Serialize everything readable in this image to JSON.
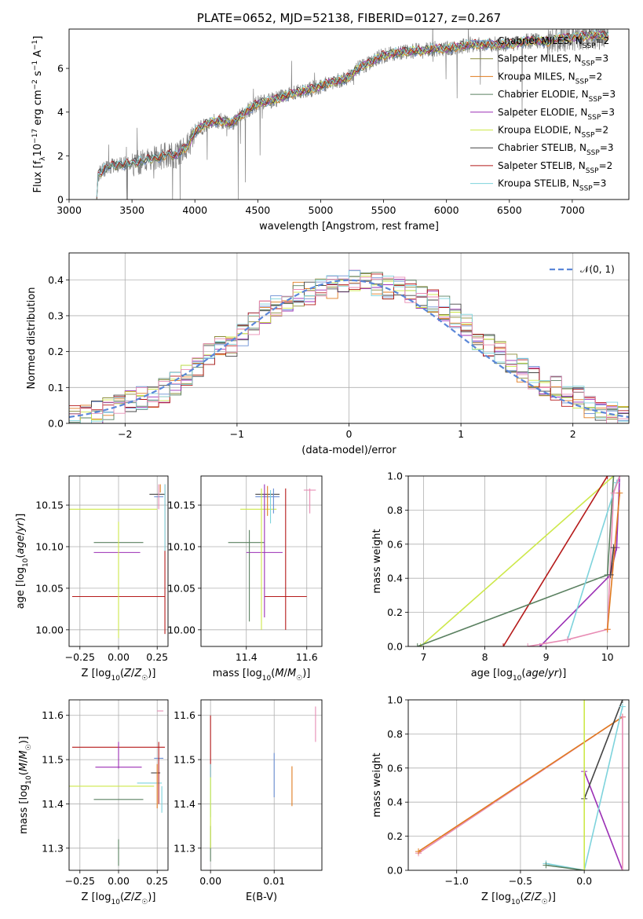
{
  "colors": {
    "Chabrier MILES": "#6b8fd4",
    "Salpeter MILES": "#8c8c3a",
    "Kroupa MILES": "#e07b1f",
    "Chabrier ELODIE": "#5a8060",
    "Salpeter ELODIE": "#9b2fb5",
    "Kroupa ELODIE": "#cde84a",
    "Chabrier STELIB": "#444444",
    "Salpeter STELIB": "#b51a1a",
    "Kroupa STELIB": "#7ed3dc",
    "Kroupa STELIB alt": "#e88cb4",
    "data": "#808080"
  },
  "chart_data": [
    {
      "id": "spectrum",
      "type": "line",
      "title": "PLATE=0652, MJD=52138, FIBERID=0127, z=0.267",
      "xlabel": "wavelength [Angstrom, rest frame]",
      "ylabel": "Flux [f_λ 10^-17 erg cm^-2 s^-1 A^-1]",
      "xlim": [
        3000,
        7450
      ],
      "ylim": [
        0,
        7.8
      ],
      "xticks": [
        "3000",
        "3500",
        "4000",
        "4500",
        "5000",
        "5500",
        "6000",
        "6500",
        "7000"
      ],
      "yticks": [
        "0",
        "2",
        "4",
        "6"
      ],
      "legend_position": "top-right",
      "legend": [
        {
          "label": "Chabrier MILES, N",
          "sub": "SSP",
          "suffix": "=2",
          "color": "#6b8fd4"
        },
        {
          "label": "Salpeter MILES, N",
          "sub": "SSP",
          "suffix": "=3",
          "color": "#8c8c3a"
        },
        {
          "label": "Kroupa MILES, N",
          "sub": "SSP",
          "suffix": "=2",
          "color": "#e07b1f"
        },
        {
          "label": "Chabrier ELODIE, N",
          "sub": "SSP",
          "suffix": "=3",
          "color": "#5a8060"
        },
        {
          "label": "Salpeter ELODIE, N",
          "sub": "SSP",
          "suffix": "=3",
          "color": "#9b2fb5"
        },
        {
          "label": "Kroupa ELODIE, N",
          "sub": "SSP",
          "suffix": "=2",
          "color": "#cde84a"
        },
        {
          "label": "Chabrier STELIB, N",
          "sub": "SSP",
          "suffix": "=3",
          "color": "#444444"
        },
        {
          "label": "Salpeter STELIB, N",
          "sub": "SSP",
          "suffix": "=2",
          "color": "#b51a1a"
        },
        {
          "label": "Kroupa STELIB, N",
          "sub": "SSP",
          "suffix": "=3",
          "color": "#7ed3dc"
        }
      ],
      "model_points": [
        [
          3220,
          0.0
        ],
        [
          3225,
          1.1
        ],
        [
          3300,
          1.5
        ],
        [
          3400,
          1.6
        ],
        [
          3500,
          1.65
        ],
        [
          3600,
          1.8
        ],
        [
          3700,
          1.9
        ],
        [
          3800,
          2.1
        ],
        [
          3850,
          2.0
        ],
        [
          3950,
          2.5
        ],
        [
          4000,
          3.1
        ],
        [
          4100,
          3.5
        ],
        [
          4200,
          3.6
        ],
        [
          4300,
          3.5
        ],
        [
          4400,
          4.0
        ],
        [
          4500,
          4.4
        ],
        [
          4600,
          4.5
        ],
        [
          4700,
          4.7
        ],
        [
          4800,
          4.9
        ],
        [
          4900,
          5.0
        ],
        [
          5000,
          5.2
        ],
        [
          5100,
          5.4
        ],
        [
          5200,
          5.5
        ],
        [
          5300,
          6.0
        ],
        [
          5400,
          6.3
        ],
        [
          5500,
          6.6
        ],
        [
          5600,
          6.7
        ],
        [
          5700,
          6.8
        ],
        [
          5800,
          6.8
        ],
        [
          5900,
          6.9
        ],
        [
          6000,
          6.9
        ],
        [
          6100,
          7.0
        ],
        [
          6200,
          7.1
        ],
        [
          6300,
          7.1
        ],
        [
          6400,
          7.1
        ],
        [
          6500,
          7.1
        ],
        [
          6600,
          7.2
        ],
        [
          6700,
          7.3
        ],
        [
          6800,
          7.2
        ],
        [
          6900,
          7.4
        ],
        [
          7000,
          7.4
        ],
        [
          7100,
          7.5
        ],
        [
          7200,
          7.5
        ],
        [
          7280,
          7.5
        ]
      ]
    },
    {
      "id": "residuals",
      "type": "histogram",
      "xlabel": "(data-model)/error",
      "ylabel": "Normed distribution",
      "xlim": [
        -2.5,
        2.5
      ],
      "ylim": [
        0,
        0.475
      ],
      "xticks": [
        "−2",
        "−1",
        "0",
        "1",
        "2"
      ],
      "yticks": [
        "0.0",
        "0.1",
        "0.2",
        "0.3",
        "0.4"
      ],
      "legend_position": "top-right",
      "legend": [
        "𝒩(0, 1)"
      ],
      "bin_edges_start": -2.5,
      "bin_width": 0.1,
      "base_heights": [
        0.015,
        0.02,
        0.03,
        0.04,
        0.05,
        0.06,
        0.07,
        0.07,
        0.09,
        0.11,
        0.13,
        0.15,
        0.19,
        0.21,
        0.22,
        0.25,
        0.28,
        0.31,
        0.33,
        0.34,
        0.36,
        0.36,
        0.37,
        0.38,
        0.39,
        0.4,
        0.39,
        0.39,
        0.38,
        0.38,
        0.37,
        0.35,
        0.34,
        0.32,
        0.3,
        0.28,
        0.24,
        0.22,
        0.2,
        0.17,
        0.15,
        0.13,
        0.11,
        0.1,
        0.08,
        0.07,
        0.05,
        0.04,
        0.03,
        0.02
      ]
    },
    {
      "id": "age_vs_Z",
      "type": "errorbar",
      "xlabel": "Z [log10(Z/Z☉)]",
      "ylabel": "age  [log10(age/yr)]",
      "xlim": [
        -0.32,
        0.32
      ],
      "ylim": [
        9.98,
        10.185
      ],
      "xticks": [
        "−0.25",
        "0.00",
        "0.25"
      ],
      "yticks": [
        "10.00",
        "10.05",
        "10.10",
        "10.15"
      ],
      "points": [
        {
          "x": 0.0,
          "y": 10.105,
          "xerr": 0.16,
          "yerr": 0.0,
          "color": "#5a8060"
        },
        {
          "x": -0.01,
          "y": 10.093,
          "xerr": 0.15,
          "yerr": 0.0,
          "color": "#9b2fb5"
        },
        {
          "x": -0.05,
          "y": 10.145,
          "xerr": 0.3,
          "yerr": 0.0,
          "color": "#cde84a"
        },
        {
          "x": 0.0,
          "y": 10.04,
          "xerr": 0.3,
          "yerr": 0.0,
          "color": "#b51a1a"
        },
        {
          "x": 0.25,
          "y": 10.163,
          "xerr": 0.05,
          "yerr": 0.0,
          "color": "#444444"
        },
        {
          "x": 0.26,
          "y": 10.16,
          "xerr": 0.03,
          "yerr": 0.0,
          "color": "#6b8fd4"
        },
        {
          "x": 0.3,
          "y": 10.085,
          "xerr": 0.0,
          "yerr": 0.09,
          "color": "#b51a1a"
        },
        {
          "x": 0.0,
          "y": 10.06,
          "xerr": 0.0,
          "yerr": 0.07,
          "color": "#cde84a"
        },
        {
          "x": 0.3,
          "y": 10.135,
          "xerr": 0.0,
          "yerr": 0.04,
          "color": "#7ed3dc"
        },
        {
          "x": 0.26,
          "y": 10.16,
          "xerr": 0.0,
          "yerr": 0.015,
          "color": "#e88cb4"
        },
        {
          "x": 0.27,
          "y": 10.17,
          "xerr": 0.0,
          "yerr": 0.005,
          "color": "#e07b1f"
        }
      ]
    },
    {
      "id": "age_vs_mass",
      "type": "errorbar",
      "xlabel": "mass [log10(M/M☉)]",
      "ylabel": "",
      "xlim": [
        11.25,
        11.65
      ],
      "ylim": [
        9.98,
        10.185
      ],
      "xticks": [
        "11.4",
        "11.6"
      ],
      "yticks": [
        "10.00",
        "10.05",
        "10.10",
        "10.15"
      ],
      "points": [
        {
          "x": 11.4,
          "y": 10.105,
          "xerr": 0.06,
          "yerr": 0.0,
          "color": "#5a8060"
        },
        {
          "x": 11.46,
          "y": 10.093,
          "xerr": 0.06,
          "yerr": 0.0,
          "color": "#9b2fb5"
        },
        {
          "x": 11.44,
          "y": 10.145,
          "xerr": 0.06,
          "yerr": 0.0,
          "color": "#cde84a"
        },
        {
          "x": 11.53,
          "y": 10.04,
          "xerr": 0.07,
          "yerr": 0.0,
          "color": "#b51a1a"
        },
        {
          "x": 11.47,
          "y": 10.163,
          "xerr": 0.04,
          "yerr": 0.0,
          "color": "#444444"
        },
        {
          "x": 11.47,
          "y": 10.16,
          "xerr": 0.04,
          "yerr": 0.0,
          "color": "#6b8fd4"
        },
        {
          "x": 11.61,
          "y": 10.168,
          "xerr": 0.02,
          "yerr": 0.0,
          "color": "#e88cb4"
        },
        {
          "x": 11.41,
          "y": 10.065,
          "xerr": 0.0,
          "yerr": 0.055,
          "color": "#5a8060"
        },
        {
          "x": 11.46,
          "y": 10.095,
          "xerr": 0.0,
          "yerr": 0.08,
          "color": "#9b2fb5"
        },
        {
          "x": 11.45,
          "y": 10.085,
          "xerr": 0.0,
          "yerr": 0.085,
          "color": "#cde84a"
        },
        {
          "x": 11.53,
          "y": 10.085,
          "xerr": 0.0,
          "yerr": 0.085,
          "color": "#b51a1a"
        },
        {
          "x": 11.49,
          "y": 10.155,
          "xerr": 0.0,
          "yerr": 0.015,
          "color": "#6b8fd4"
        },
        {
          "x": 11.48,
          "y": 10.148,
          "xerr": 0.0,
          "yerr": 0.02,
          "color": "#7ed3dc"
        },
        {
          "x": 11.61,
          "y": 10.155,
          "xerr": 0.0,
          "yerr": 0.015,
          "color": "#e88cb4"
        },
        {
          "x": 11.47,
          "y": 10.155,
          "xerr": 0.0,
          "yerr": 0.018,
          "color": "#e07b1f"
        }
      ]
    },
    {
      "id": "weight_vs_age",
      "type": "line",
      "xlabel": "age  [log10(age/yr)]",
      "ylabel": "mass weight",
      "xlim": [
        6.75,
        10.35
      ],
      "ylim": [
        0,
        1.0
      ],
      "xticks": [
        "7",
        "8",
        "9",
        "10"
      ],
      "yticks": [
        "0.0",
        "0.2",
        "0.4",
        "0.6",
        "0.8",
        "1.0"
      ],
      "series": [
        {
          "color": "#cde84a",
          "x": [
            6.95,
            10.1
          ],
          "y": [
            0.0,
            1.0
          ]
        },
        {
          "color": "#b51a1a",
          "x": [
            8.3,
            10.0
          ],
          "y": [
            0.0,
            1.0
          ]
        },
        {
          "color": "#5a8060",
          "x": [
            6.9,
            10.0,
            10.1
          ],
          "y": [
            0.0,
            0.42,
            1.0
          ]
        },
        {
          "color": "#9b2fb5",
          "x": [
            8.9,
            10.05,
            10.15,
            10.2
          ],
          "y": [
            0.0,
            0.42,
            0.58,
            1.0
          ]
        },
        {
          "color": "#7ed3dc",
          "x": [
            9.35,
            10.15,
            10.2
          ],
          "y": [
            0.04,
            0.96,
            1.0
          ]
        },
        {
          "color": "#e88cb4",
          "x": [
            8.7,
            9.35,
            10.0,
            10.1,
            10.2
          ],
          "y": [
            0.0,
            0.04,
            0.1,
            0.9,
            1.0
          ]
        },
        {
          "color": "#e07b1f",
          "x": [
            10.0,
            10.2
          ],
          "y": [
            0.1,
            0.9
          ]
        },
        {
          "color": "#444444",
          "x": [
            10.05,
            10.1
          ],
          "y": [
            0.42,
            0.58
          ]
        }
      ]
    },
    {
      "id": "mass_vs_Z",
      "type": "errorbar",
      "xlabel": "Z [log10(Z/Z☉)]",
      "ylabel": "mass [log10(M/M☉)]",
      "xlim": [
        -0.32,
        0.32
      ],
      "ylim": [
        11.25,
        11.635
      ],
      "xticks": [
        "−0.25",
        "0.00",
        "0.25"
      ],
      "yticks": [
        "11.3",
        "11.4",
        "11.5",
        "11.6"
      ],
      "points": [
        {
          "x": 0.0,
          "y": 11.528,
          "xerr": 0.3,
          "yerr": 0.0,
          "color": "#b51a1a"
        },
        {
          "x": 0.0,
          "y": 11.483,
          "xerr": 0.15,
          "yerr": 0.0,
          "color": "#9b2fb5"
        },
        {
          "x": -0.05,
          "y": 11.44,
          "xerr": 0.28,
          "yerr": 0.0,
          "color": "#cde84a"
        },
        {
          "x": 0.0,
          "y": 11.41,
          "xerr": 0.16,
          "yerr": 0.0,
          "color": "#5a8060"
        },
        {
          "x": 0.2,
          "y": 11.447,
          "xerr": 0.08,
          "yerr": 0.0,
          "color": "#7ed3dc"
        },
        {
          "x": 0.26,
          "y": 11.503,
          "xerr": 0.03,
          "yerr": 0.0,
          "color": "#6b8fd4"
        },
        {
          "x": 0.27,
          "y": 11.61,
          "xerr": 0.02,
          "yerr": 0.0,
          "color": "#e88cb4"
        },
        {
          "x": 0.24,
          "y": 11.47,
          "xerr": 0.03,
          "yerr": 0.0,
          "color": "#444444"
        },
        {
          "x": 0.0,
          "y": 11.29,
          "xerr": 0.0,
          "yerr": 0.03,
          "color": "#5a8060"
        },
        {
          "x": 0.0,
          "y": 11.51,
          "xerr": 0.0,
          "yerr": 0.03,
          "color": "#9b2fb5"
        },
        {
          "x": 0.26,
          "y": 11.47,
          "xerr": 0.0,
          "yerr": 0.07,
          "color": "#b51a1a"
        },
        {
          "x": 0.25,
          "y": 11.44,
          "xerr": 0.0,
          "yerr": 0.05,
          "color": "#e07b1f"
        },
        {
          "x": 0.28,
          "y": 11.41,
          "xerr": 0.0,
          "yerr": 0.03,
          "color": "#7ed3dc"
        }
      ]
    },
    {
      "id": "mass_vs_ebv",
      "type": "errorbar",
      "xlabel": "E(B-V)",
      "ylabel": "",
      "xlim": [
        -0.0015,
        0.0175
      ],
      "ylim": [
        11.25,
        11.635
      ],
      "xticks": [
        "0.00",
        "0.01"
      ],
      "yticks": [
        "11.3",
        "11.4",
        "11.5",
        "11.6"
      ],
      "points": [
        {
          "x": 0.0,
          "y": 11.53,
          "xerr": 0.0,
          "yerr": 0.07,
          "color": "#b51a1a"
        },
        {
          "x": 0.0,
          "y": 11.43,
          "xerr": 0.0,
          "yerr": 0.06,
          "color": "#7ed3dc"
        },
        {
          "x": 0.0,
          "y": 11.31,
          "xerr": 0.0,
          "yerr": 0.04,
          "color": "#5a8060"
        },
        {
          "x": 0.0,
          "y": 11.38,
          "xerr": 0.0,
          "yerr": 0.08,
          "color": "#cde84a"
        },
        {
          "x": 0.01,
          "y": 11.465,
          "xerr": 0.0,
          "yerr": 0.05,
          "color": "#6b8fd4"
        },
        {
          "x": 0.0128,
          "y": 11.44,
          "xerr": 0.0,
          "yerr": 0.045,
          "color": "#e07b1f"
        },
        {
          "x": 0.0165,
          "y": 11.58,
          "xerr": 0.0,
          "yerr": 0.04,
          "color": "#e88cb4"
        }
      ]
    },
    {
      "id": "weight_vs_Z",
      "type": "line",
      "xlabel": "Z [log10(Z/Z☉)]",
      "ylabel": "mass weight",
      "xlim": [
        -1.38,
        0.35
      ],
      "ylim": [
        0,
        1.0
      ],
      "xticks": [
        "−1.0",
        "−0.5",
        "0.0"
      ],
      "yticks": [
        "0.0",
        "0.2",
        "0.4",
        "0.6",
        "0.8",
        "1.0"
      ],
      "series": [
        {
          "color": "#e88cb4",
          "x": [
            -1.3,
            0.3
          ],
          "y": [
            0.1,
            0.9
          ]
        },
        {
          "color": "#e07b1f",
          "x": [
            -1.3,
            0.3
          ],
          "y": [
            0.11,
            0.9
          ]
        },
        {
          "color": "#9b2fb5",
          "x": [
            0.0,
            0.3
          ],
          "y": [
            0.58,
            0.0
          ]
        },
        {
          "color": "#444444",
          "x": [
            0.0,
            0.3
          ],
          "y": [
            0.42,
            1.0
          ]
        },
        {
          "color": "#7ed3dc",
          "x": [
            -0.3,
            0.0,
            0.3
          ],
          "y": [
            0.04,
            0.0,
            0.96
          ]
        },
        {
          "color": "#5a8060",
          "x": [
            -0.3,
            0.0
          ],
          "y": [
            0.03,
            0.0
          ]
        },
        {
          "color": "#cde84a",
          "x": [
            0.0,
            0.0
          ],
          "y": [
            0.0,
            1.0
          ]
        },
        {
          "color": "#e88cb4",
          "x": [
            0.3,
            0.3
          ],
          "y": [
            0.0,
            0.9
          ]
        }
      ]
    }
  ]
}
